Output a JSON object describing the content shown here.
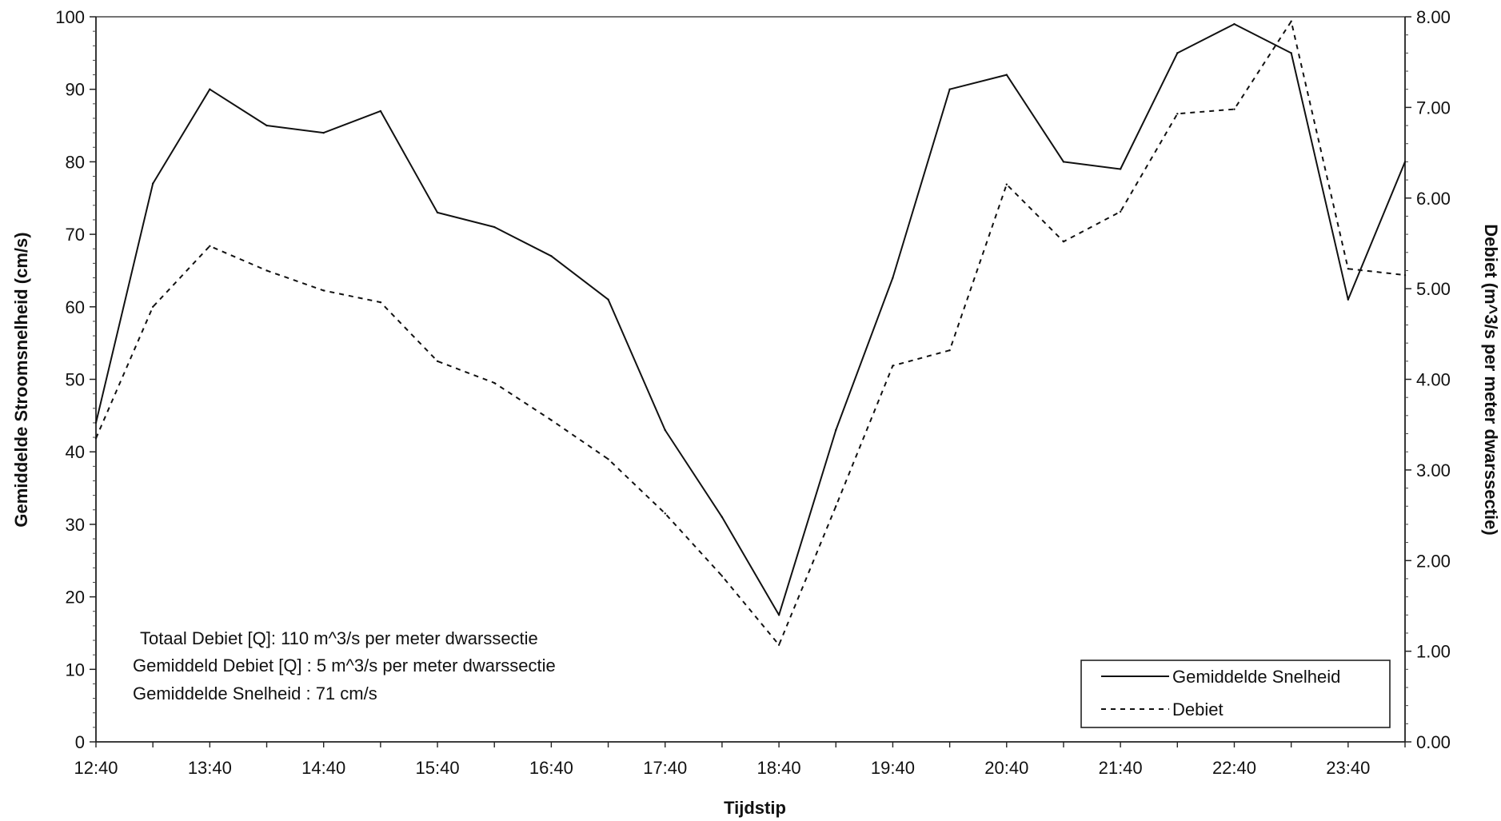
{
  "chart_data": {
    "type": "line",
    "title": "",
    "xlabel": "Tijdstip",
    "ylabel": "Gemiddelde Stroomsnelheid (cm/s)",
    "y2label": "Debiet (m^3/s per meter dwarssectie)",
    "ylim": [
      0,
      100
    ],
    "y2lim": [
      0,
      8
    ],
    "yticks": [
      "0",
      "10",
      "20",
      "30",
      "40",
      "50",
      "60",
      "70",
      "80",
      "90",
      "100"
    ],
    "y2ticks": [
      "0.00",
      "1.00",
      "2.00",
      "3.00",
      "4.00",
      "5.00",
      "6.00",
      "7.00",
      "8.00"
    ],
    "xtick_labels": [
      "12:40",
      "13:40",
      "14:40",
      "15:40",
      "16:40",
      "17:40",
      "18:40",
      "19:40",
      "20:40",
      "21:40",
      "22:40",
      "23:40"
    ],
    "x": [
      "12:40",
      "13:10",
      "13:40",
      "14:10",
      "14:40",
      "15:10",
      "15:40",
      "16:10",
      "16:40",
      "17:10",
      "17:40",
      "18:10",
      "18:40",
      "19:10",
      "19:40",
      "20:10",
      "20:40",
      "21:10",
      "21:40",
      "22:10",
      "22:40",
      "23:10",
      "23:40",
      "00:10"
    ],
    "series": [
      {
        "name": "Gemiddelde Snelheid",
        "axis": "left",
        "style": "solid",
        "values": [
          44,
          77,
          90,
          85,
          84,
          87,
          73,
          71,
          67,
          61,
          43,
          31,
          17.5,
          43,
          64,
          90,
          92,
          80,
          79,
          95,
          99,
          95,
          61,
          80
        ]
      },
      {
        "name": "Debiet",
        "axis": "right",
        "style": "dashed",
        "values": [
          3.35,
          4.8,
          5.47,
          5.2,
          4.98,
          4.85,
          4.2,
          3.96,
          3.55,
          3.12,
          2.52,
          1.83,
          1.07,
          2.6,
          4.15,
          4.32,
          6.15,
          5.52,
          5.85,
          6.93,
          6.98,
          7.95,
          5.22,
          5.15
        ]
      }
    ],
    "annotations": [
      "Totaal Debiet [Q]: 110 m^3/s per meter dwarssectie",
      "Gemiddeld Debiet [Q] : 5 m^3/s per meter dwarssectie",
      "Gemiddelde Snelheid : 71 cm/s"
    ],
    "legend": {
      "placement": "bottom-right",
      "entries": [
        "Gemiddelde Snelheid",
        "Debiet"
      ]
    },
    "grid": false
  }
}
